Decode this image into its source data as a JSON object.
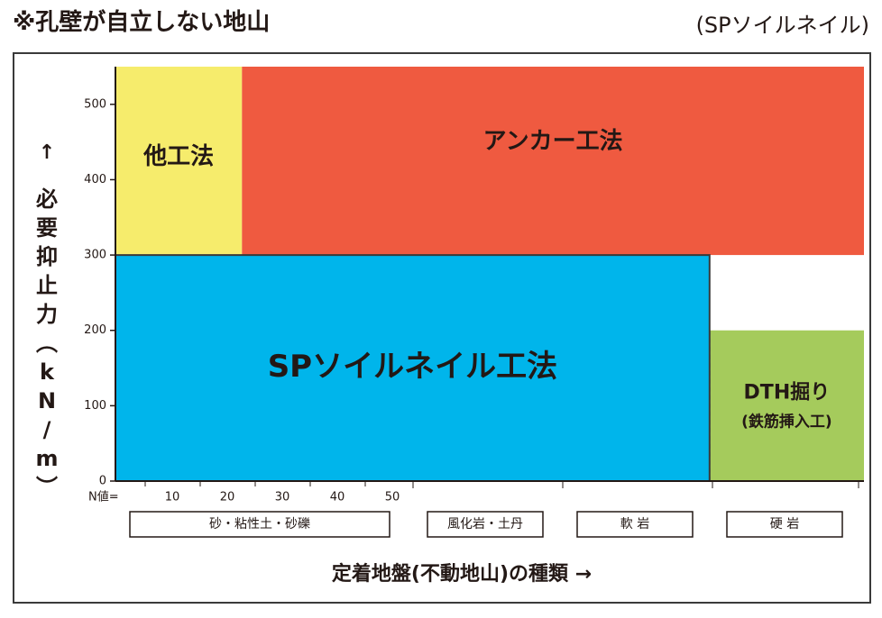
{
  "header": {
    "title": "※孔壁が自立しない地山",
    "note": "(SPソイルネイル)"
  },
  "colors": {
    "other": "#f6ec6c",
    "anchor": "#ef5a40",
    "sp": "#00b5eb",
    "dth": "#a5cb5c"
  },
  "chart_data": {
    "type": "area",
    "ylabel": "必要抑止力(kN/m)",
    "ylabel_arrow": "↑",
    "xlabel": "定着地盤(不動地山)の種類",
    "xlabel_arrow": "→",
    "y_ticks": [
      0,
      100,
      200,
      300,
      400,
      500
    ],
    "ylim": [
      0,
      550
    ],
    "n_prefix": "N値=",
    "n_values": [
      10,
      20,
      30,
      40,
      50
    ],
    "ground_types": [
      "砂・粘性土・砂礫",
      "風化岩・土丹",
      "軟 岩",
      "硬 岩"
    ],
    "regions": [
      {
        "name": "他工法",
        "sublabel": "",
        "n_from": 0,
        "n_to": 23,
        "y_from": 300,
        "y_to": 550,
        "color": "#f6ec6c"
      },
      {
        "name": "アンカー工法",
        "sublabel": "",
        "n_from": 23,
        "n_to": 137,
        "y_from": 300,
        "y_to": 550,
        "color": "#ef5a40"
      },
      {
        "name": "SPソイルネイル工法",
        "sublabel": "",
        "n_from": 0,
        "n_to": 108,
        "y_from": 0,
        "y_to": 300,
        "color": "#00b5eb"
      },
      {
        "name": "DTH掘り",
        "sublabel": "(鉄筋挿入工)",
        "n_from": 108,
        "n_to": 137,
        "y_from": 0,
        "y_to": 200,
        "color": "#a5cb5c"
      }
    ]
  }
}
